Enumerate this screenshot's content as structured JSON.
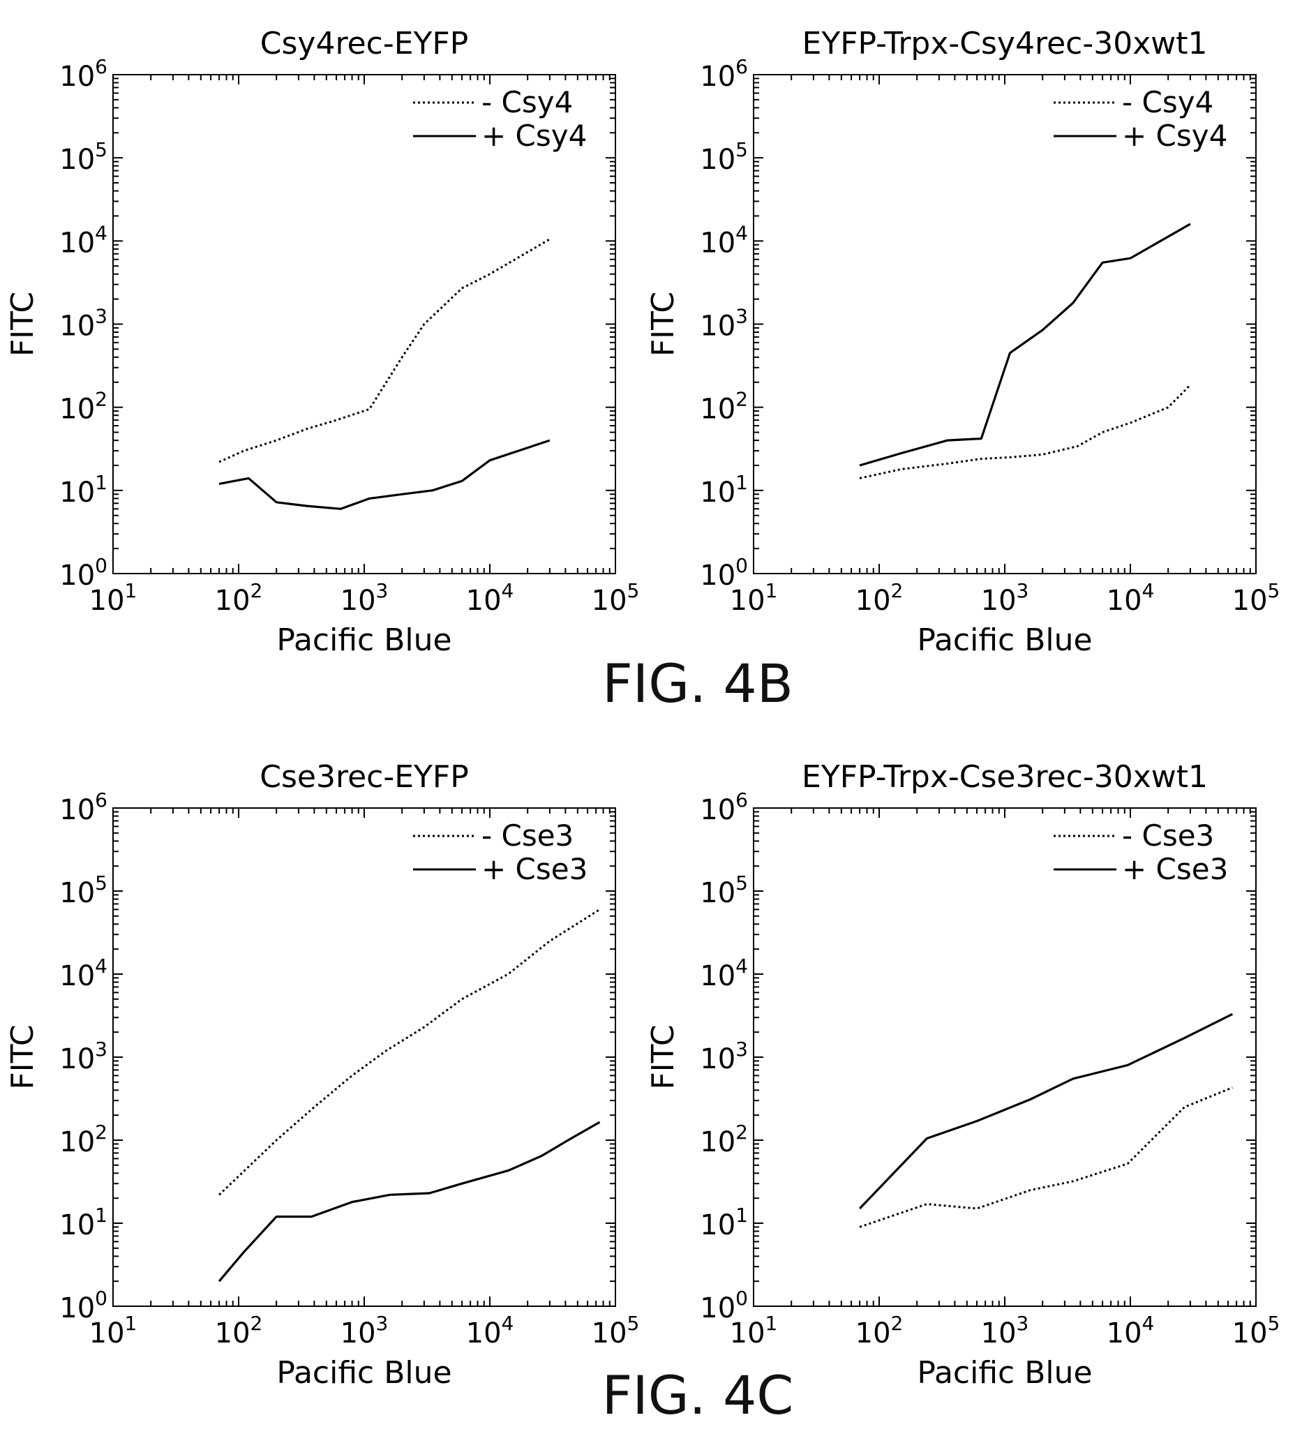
{
  "captions": {
    "fig_4b": "FIG. 4B",
    "fig_4c": "FIG. 4C"
  },
  "chart_data": [
    {
      "type": "line",
      "title": "Csy4rec-EYFP",
      "xlabel": "Pacific Blue",
      "ylabel": "FITC",
      "xscale": "log",
      "yscale": "log",
      "xlim": [
        10,
        100000
      ],
      "ylim": [
        1,
        1000000
      ],
      "x_tick_labels": [
        "10",
        "10",
        "10",
        "10",
        "10"
      ],
      "x_tick_exponents": [
        "1",
        "2",
        "3",
        "4",
        "5"
      ],
      "y_tick_labels": [
        "10",
        "10",
        "10",
        "10",
        "10",
        "10",
        "10"
      ],
      "y_tick_exponents": [
        "0",
        "1",
        "2",
        "3",
        "4",
        "5",
        "6"
      ],
      "legend_position": "top-right",
      "series": [
        {
          "name": "- Csy4",
          "style": "dotted",
          "x": [
            70,
            110,
            200,
            350,
            600,
            1100,
            2000,
            3000,
            6000,
            10000,
            30000
          ],
          "y": [
            22,
            30,
            40,
            55,
            70,
            95,
            400,
            1000,
            2700,
            4000,
            10500
          ]
        },
        {
          "name": "+ Csy4",
          "style": "solid",
          "x": [
            70,
            120,
            200,
            350,
            650,
            1100,
            2000,
            3500,
            6000,
            10000,
            30000
          ],
          "y": [
            12,
            14,
            7.2,
            6.5,
            6,
            8,
            9,
            10,
            13,
            23,
            40
          ]
        }
      ]
    },
    {
      "type": "line",
      "title": "EYFP-Trpx-Csy4rec-30xwt1",
      "xlabel": "Pacific Blue",
      "ylabel": "FITC",
      "xscale": "log",
      "yscale": "log",
      "xlim": [
        10,
        100000
      ],
      "ylim": [
        1,
        1000000
      ],
      "x_tick_labels": [
        "10",
        "10",
        "10",
        "10",
        "10"
      ],
      "x_tick_exponents": [
        "1",
        "2",
        "3",
        "4",
        "5"
      ],
      "y_tick_labels": [
        "10",
        "10",
        "10",
        "10",
        "10",
        "10",
        "10"
      ],
      "y_tick_exponents": [
        "0",
        "1",
        "2",
        "3",
        "4",
        "5",
        "6"
      ],
      "legend_position": "top-right",
      "series": [
        {
          "name": "- Csy4",
          "style": "dotted",
          "x": [
            70,
            150,
            350,
            650,
            1100,
            2000,
            3800,
            6000,
            10000,
            20000,
            30000
          ],
          "y": [
            14,
            18,
            21,
            24,
            25,
            27,
            34,
            50,
            65,
            100,
            185
          ]
        },
        {
          "name": "+ Csy4",
          "style": "solid",
          "x": [
            70,
            150,
            350,
            650,
            1100,
            2000,
            3500,
            6000,
            10000,
            30000
          ],
          "y": [
            20,
            28,
            40,
            42,
            450,
            850,
            1800,
            5500,
            6200,
            16000
          ]
        }
      ]
    },
    {
      "type": "line",
      "title": "Cse3rec-EYFP",
      "xlabel": "Pacific Blue",
      "ylabel": "FITC",
      "xscale": "log",
      "yscale": "log",
      "xlim": [
        10,
        100000
      ],
      "ylim": [
        1,
        1000000
      ],
      "x_tick_labels": [
        "10",
        "10",
        "10",
        "10",
        "10"
      ],
      "x_tick_exponents": [
        "1",
        "2",
        "3",
        "4",
        "5"
      ],
      "y_tick_labels": [
        "10",
        "10",
        "10",
        "10",
        "10",
        "10",
        "10"
      ],
      "y_tick_exponents": [
        "0",
        "1",
        "2",
        "3",
        "4",
        "5",
        "6"
      ],
      "legend_position": "top-right",
      "series": [
        {
          "name": "- Cse3",
          "style": "dotted",
          "x": [
            70,
            200,
            400,
            800,
            1500,
            3000,
            6000,
            14000,
            30000,
            75000
          ],
          "y": [
            22,
            100,
            250,
            600,
            1200,
            2300,
            5000,
            10000,
            25000,
            60000
          ]
        },
        {
          "name": "+ Cse3",
          "style": "solid",
          "x": [
            70,
            110,
            200,
            380,
            800,
            1600,
            3300,
            6000,
            14000,
            26000,
            42000,
            75000
          ],
          "y": [
            2,
            4.5,
            12,
            12,
            18,
            22,
            23,
            30,
            43,
            65,
            100,
            165
          ]
        }
      ]
    },
    {
      "type": "line",
      "title": "EYFP-Trpx-Cse3rec-30xwt1",
      "xlabel": "Pacific Blue",
      "ylabel": "FITC",
      "xscale": "log",
      "yscale": "log",
      "xlim": [
        10,
        100000
      ],
      "ylim": [
        1,
        1000000
      ],
      "x_tick_labels": [
        "10",
        "10",
        "10",
        "10",
        "10"
      ],
      "x_tick_exponents": [
        "1",
        "2",
        "3",
        "4",
        "5"
      ],
      "y_tick_labels": [
        "10",
        "10",
        "10",
        "10",
        "10",
        "10",
        "10"
      ],
      "y_tick_exponents": [
        "0",
        "1",
        "2",
        "3",
        "4",
        "5",
        "6"
      ],
      "legend_position": "top-right",
      "series": [
        {
          "name": "- Cse3",
          "style": "dotted",
          "x": [
            70,
            240,
            600,
            1600,
            3500,
            9500,
            27000,
            65000
          ],
          "y": [
            9,
            17,
            15,
            25,
            32,
            52,
            250,
            430
          ]
        },
        {
          "name": "+ Cse3",
          "style": "solid",
          "x": [
            70,
            240,
            600,
            1600,
            3500,
            9500,
            27000,
            65000
          ],
          "y": [
            15,
            105,
            170,
            310,
            550,
            800,
            1700,
            3300
          ]
        }
      ]
    }
  ]
}
